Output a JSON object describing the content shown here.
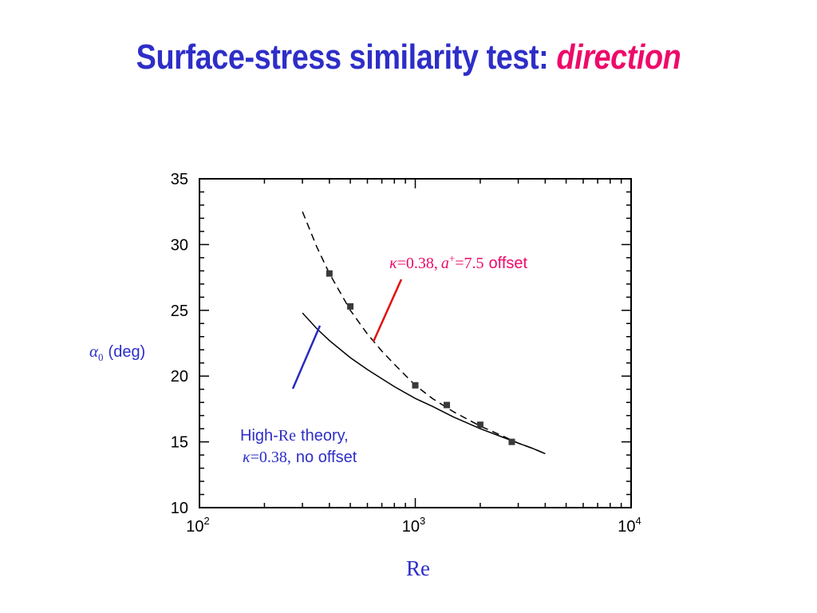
{
  "slide": {
    "title_main": "Surface-stress similarity test:",
    "title_highlight": "direction"
  },
  "colors": {
    "title": "#2e2ec8",
    "highlight": "#ee0a6a",
    "offset_line": "#e01010",
    "no_offset_line": "#2a2ac0",
    "ylabel": "#2e2ec8"
  },
  "chart_data": {
    "type": "line",
    "xlabel": "Re",
    "ylabel": {
      "symbol": "α",
      "subscript": "0",
      "unit": "(deg)"
    },
    "xscale": "log",
    "xlim": [
      100,
      10000
    ],
    "ylim": [
      10,
      35
    ],
    "xticks": [
      {
        "value": 100,
        "base": "10",
        "exp": "2"
      },
      {
        "value": 1000,
        "base": "10",
        "exp": "3"
      },
      {
        "value": 10000,
        "base": "10",
        "exp": "4"
      }
    ],
    "yticks": [
      10,
      15,
      20,
      25,
      30,
      35
    ],
    "grid": false,
    "series": [
      {
        "style": "solid",
        "x": [
          300,
          350,
          400,
          500,
          600,
          700,
          800,
          1000,
          1200,
          1500,
          2000,
          2500,
          3000,
          3500,
          4000
        ],
        "y": [
          24.8,
          23.6,
          22.7,
          21.4,
          20.5,
          19.8,
          19.2,
          18.3,
          17.7,
          16.9,
          16.0,
          15.4,
          14.9,
          14.5,
          14.1
        ]
      },
      {
        "style": "dashed",
        "x": [
          300,
          350,
          400,
          500,
          600,
          700,
          800,
          1000,
          1200,
          1500,
          2000,
          2500,
          3000,
          3500,
          4000
        ],
        "y": [
          32.5,
          29.8,
          27.8,
          25.0,
          23.2,
          21.9,
          20.9,
          19.3,
          18.3,
          17.3,
          16.2,
          15.5,
          14.9,
          14.5,
          14.1
        ]
      },
      {
        "style": "markers",
        "x": [
          400,
          500,
          1000,
          1400,
          2000,
          2800
        ],
        "y": [
          27.8,
          25.3,
          19.3,
          17.8,
          16.3,
          15.0
        ]
      }
    ],
    "annotations": [
      {
        "kappa_symbol": "κ",
        "kappa_value": "=0.38,",
        "a_symbol": "a",
        "a_superscript": "+",
        "a_value": "=7.5",
        "suffix": "offset"
      },
      {
        "line1_pre": "High-",
        "line1_re": "Re",
        "line1_post": "theory,",
        "kappa_symbol": "κ",
        "kappa_value": "=0.38,",
        "suffix": "no offset"
      }
    ]
  }
}
